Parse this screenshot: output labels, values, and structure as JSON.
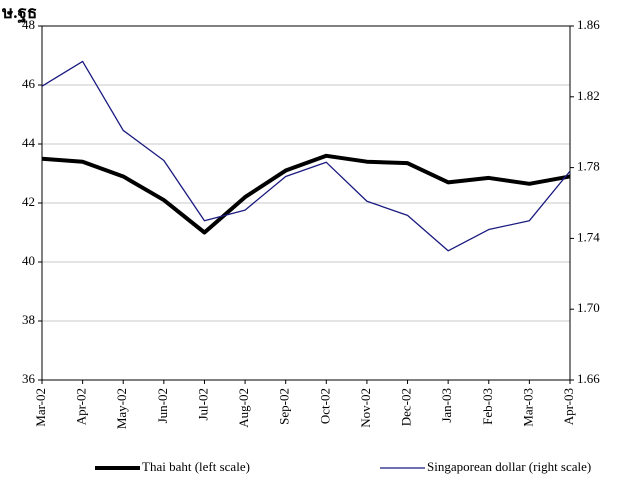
{
  "chart_data": {
    "type": "line",
    "title": "ษ.ฐธ",
    "categories": [
      "Mar-02",
      "Apr-02",
      "May-02",
      "Jun-02",
      "Jul-02",
      "Aug-02",
      "Sep-02",
      "Oct-02",
      "Nov-02",
      "Dec-02",
      "Jan-03",
      "Feb-03",
      "Mar-03",
      "Apr-03"
    ],
    "series": [
      {
        "name": "Thai baht (left scale)",
        "color": "#000000",
        "values": [
          43.5,
          43.4,
          42.9,
          42.1,
          41.0,
          42.2,
          43.1,
          43.6,
          43.4,
          43.35,
          42.7,
          42.85,
          42.65,
          42.9
        ]
      },
      {
        "name": "Singaporean dollar (right scale)",
        "color": "#1a1a80",
        "axis": "y2",
        "values": [
          1.826,
          1.84,
          1.801,
          1.784,
          1.75,
          1.756,
          1.775,
          1.783,
          1.761,
          1.753,
          1.733,
          1.745,
          1.75,
          1.778
        ]
      }
    ],
    "ylim": [
      36,
      48
    ],
    "yticks": [
      36,
      38,
      40,
      42,
      44,
      46,
      48
    ],
    "y2lim": [
      1.66,
      1.86
    ],
    "y2ticks": [
      1.66,
      {
        "value": 1.7,
        "label": "1.70"
      },
      1.74,
      1.78,
      1.82,
      1.86
    ],
    "grid": true,
    "legend": "bottom"
  }
}
